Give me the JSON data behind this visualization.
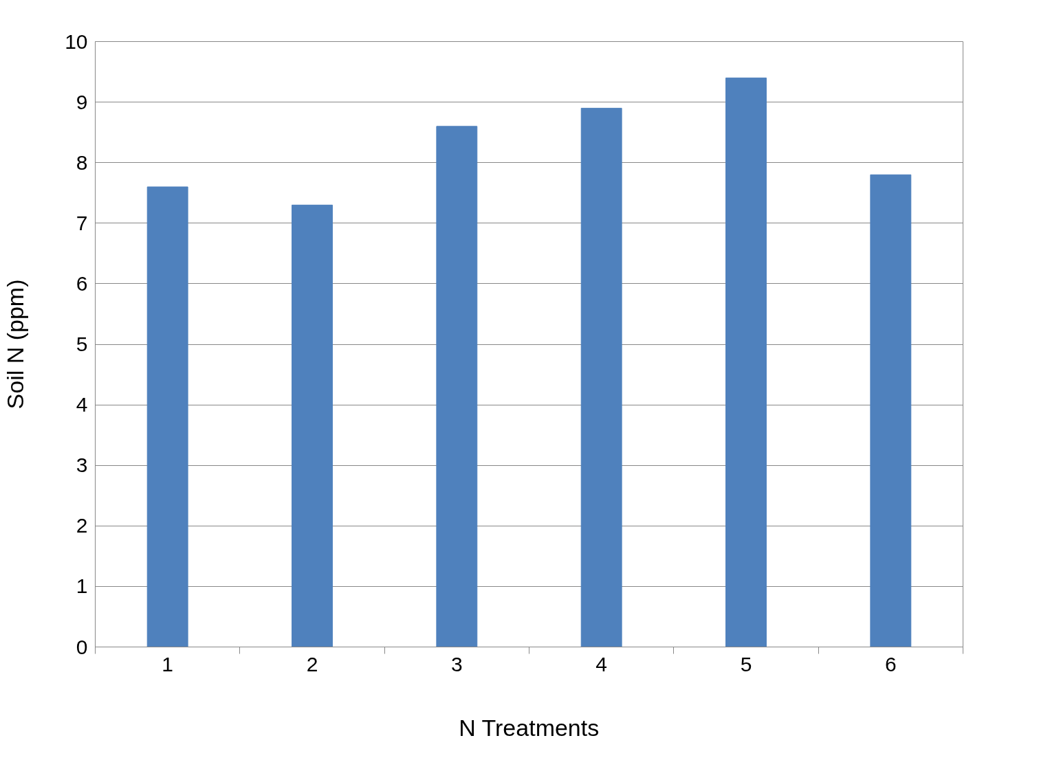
{
  "chart_data": {
    "type": "bar",
    "categories": [
      "1",
      "2",
      "3",
      "4",
      "5",
      "6"
    ],
    "values": [
      7.6,
      7.3,
      8.6,
      8.9,
      9.4,
      7.8
    ],
    "color": "#4f81bd",
    "xlabel": "N Treatments",
    "ylabel": "Soil N (ppm)",
    "ylim": [
      0,
      10
    ],
    "yticks": [
      0,
      1,
      2,
      3,
      4,
      5,
      6,
      7,
      8,
      9,
      10
    ],
    "grid": "y"
  }
}
